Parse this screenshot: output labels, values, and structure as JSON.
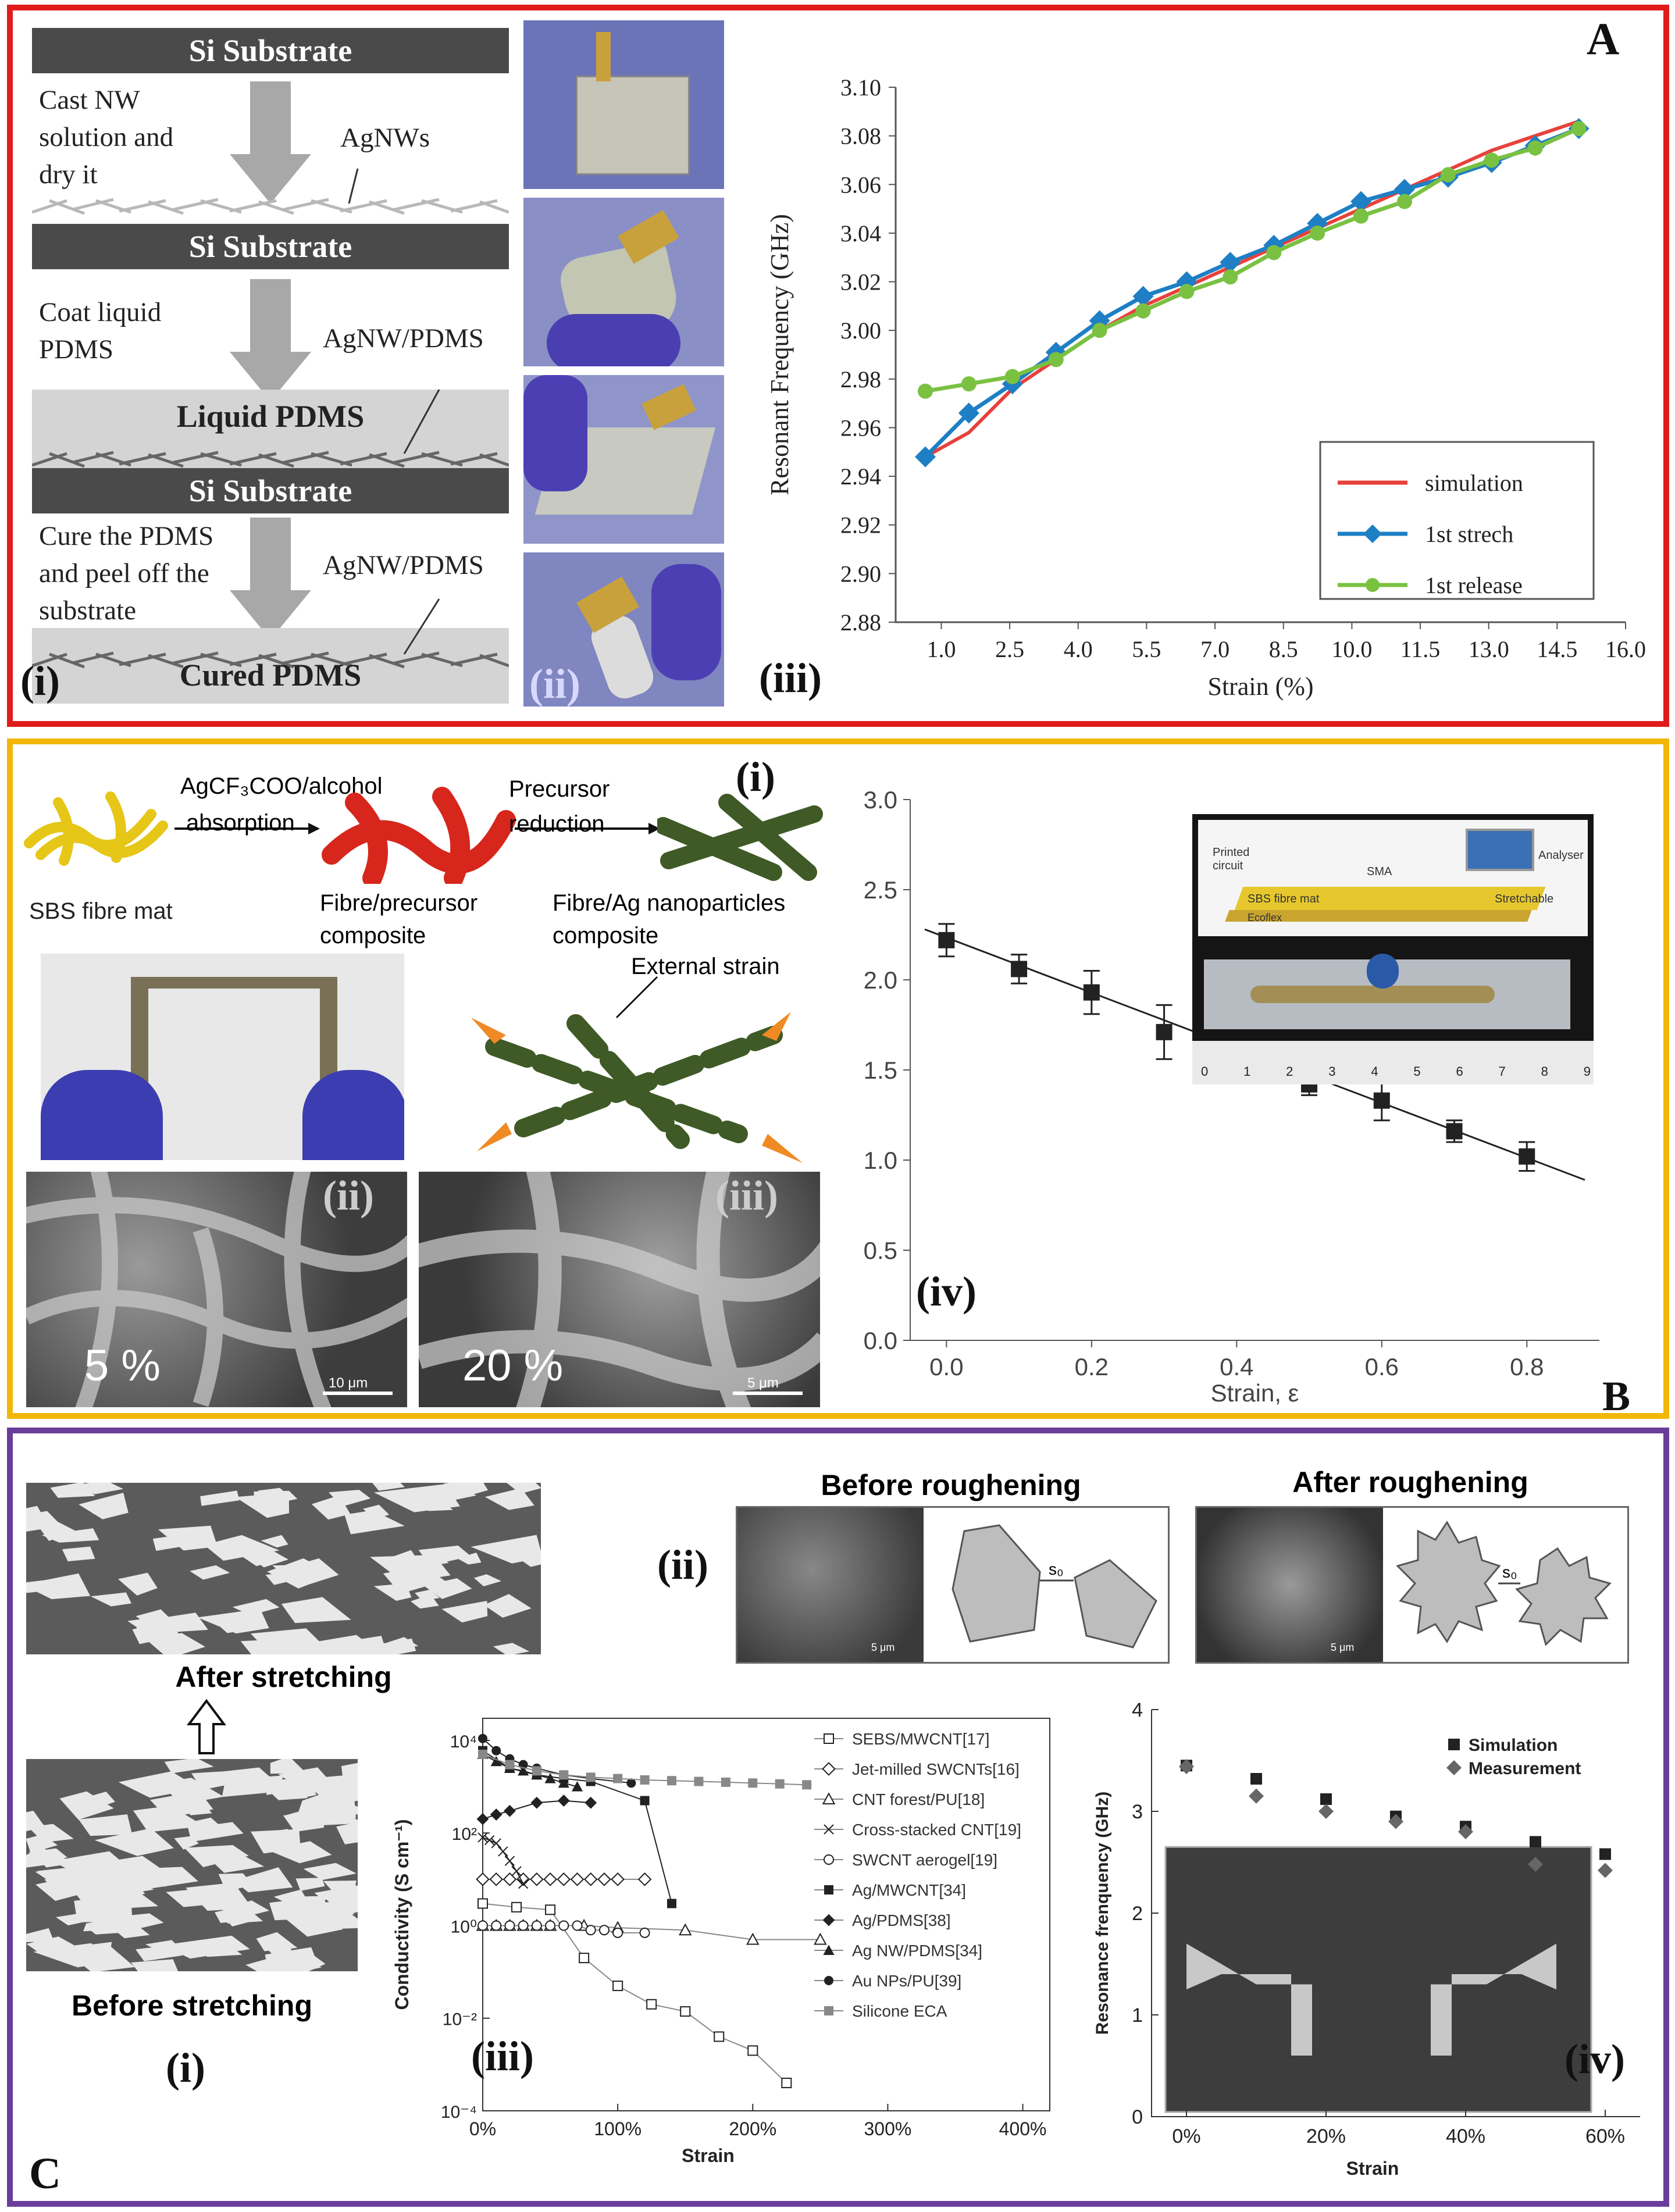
{
  "colors": {
    "panelA_border": "#e01b1b",
    "panelB_border": "#f2b705",
    "panelC_border": "#6a3d9a",
    "sim": "#e8413b",
    "stretch": "#1e7fc4",
    "release": "#7ac142"
  },
  "panelA": {
    "letter": "A",
    "label_i": "(i)",
    "label_ii": "(ii)",
    "label_iii": "(iii)",
    "bars": [
      "Si Substrate",
      "Si Substrate",
      "Si Substrate"
    ],
    "liquid_pdms": "Liquid PDMS",
    "cured_pdms": "Cured PDMS",
    "step1": [
      "Cast NW",
      "solution and",
      "dry it"
    ],
    "step2": [
      "Coat liquid",
      "PDMS"
    ],
    "step3": [
      "Cure the PDMS",
      "and peel off the",
      "substrate"
    ],
    "ann1": "AgNWs",
    "ann2": "AgNW/PDMS",
    "ann3": "AgNW/PDMS"
  },
  "panelB": {
    "letter": "B",
    "label_i": "(i)",
    "label_ii": "(ii)",
    "label_iii": "(iii)",
    "label_iv": "(iv)",
    "arrow1_top": "AgCF₃COO/alcohol",
    "arrow1_bot": "absorption",
    "arrow2_top": "Precursor",
    "arrow2_bot": "reduction",
    "mat": "SBS fibre mat",
    "comp1": [
      "Fibre/precursor",
      "composite"
    ],
    "comp2": [
      "Fibre/Ag nanoparticles",
      "composite"
    ],
    "external": "External strain",
    "sem1_pct": "5 %",
    "sem2_pct": "20 %",
    "sem1_scale": "10 μm",
    "sem2_scale": "5 μm",
    "inset": {
      "printed": "Printed",
      "circuit": "circuit",
      "sma": "SMA",
      "analyser": "Analyser",
      "mat": "SBS fibre mat",
      "stretch": "Stretchable",
      "ecoflex": "Ecoflex",
      "ruler": [
        "0",
        "1",
        "2",
        "3",
        "4",
        "5",
        "6",
        "7",
        "8",
        "9"
      ]
    }
  },
  "panelC": {
    "letter": "C",
    "label_i": "(i)",
    "label_ii": "(ii)",
    "label_iii": "(iii)",
    "label_iv": "(iv)",
    "after_stretch": "After stretching",
    "before_stretch": "Before stretching",
    "before_rough": "Before roughening",
    "after_rough": "After roughening",
    "s0": "s₀",
    "scale": "5 μm"
  },
  "chart_data": [
    {
      "id": "A-iii",
      "type": "line",
      "xlabel": "Strain (%)",
      "ylabel": "Resonant Frequency (GHz)",
      "xlim": [
        0,
        16
      ],
      "ylim": [
        2.88,
        3.1
      ],
      "xticks": [
        "1.0",
        "2.5",
        "4.0",
        "5.5",
        "7.0",
        "8.5",
        "10.0",
        "11.5",
        "13.0",
        "14.5",
        "16.0"
      ],
      "yticks": [
        "2.88",
        "2.90",
        "2.92",
        "2.94",
        "2.96",
        "2.98",
        "3.00",
        "3.02",
        "3.04",
        "3.06",
        "3.08",
        "3.10"
      ],
      "legend_position": "bottom-right",
      "series": [
        {
          "name": "simulation",
          "x": [
            0,
            1,
            2,
            3,
            4,
            5,
            6,
            7,
            8,
            9,
            10,
            11,
            12,
            13,
            14,
            15
          ],
          "y": [
            2.948,
            2.958,
            2.976,
            2.988,
            3.0,
            3.01,
            3.018,
            3.026,
            3.034,
            3.042,
            3.05,
            3.058,
            3.066,
            3.074,
            3.08,
            3.086
          ]
        },
        {
          "name": "1st strech",
          "x": [
            0,
            1,
            2,
            3,
            4,
            5,
            6,
            7,
            8,
            9,
            10,
            11,
            12,
            13,
            14,
            15
          ],
          "y": [
            2.948,
            2.966,
            2.978,
            2.991,
            3.004,
            3.014,
            3.02,
            3.028,
            3.035,
            3.044,
            3.053,
            3.058,
            3.063,
            3.069,
            3.076,
            3.083
          ]
        },
        {
          "name": "1st release",
          "x": [
            0,
            1,
            2,
            3,
            4,
            5,
            6,
            7,
            8,
            9,
            10,
            11,
            12,
            13,
            14,
            15
          ],
          "y": [
            2.975,
            2.978,
            2.981,
            2.988,
            3.0,
            3.008,
            3.016,
            3.022,
            3.032,
            3.04,
            3.047,
            3.053,
            3.064,
            3.07,
            3.075,
            3.083
          ]
        }
      ]
    },
    {
      "id": "B-iv",
      "type": "scatter",
      "xlabel": "Strain, ε",
      "ylabel": "",
      "xlim": [
        -0.05,
        0.9
      ],
      "ylim": [
        0,
        3.0
      ],
      "xticks": [
        "0.0",
        "0.2",
        "0.4",
        "0.6",
        "0.8"
      ],
      "yticks": [
        "0.0",
        "0.5",
        "1.0",
        "1.5",
        "2.0",
        "2.5",
        "3.0"
      ],
      "x": [
        0,
        0.1,
        0.2,
        0.3,
        0.5,
        0.6,
        0.7,
        0.8
      ],
      "y": [
        2.22,
        2.06,
        1.93,
        1.71,
        1.42,
        1.33,
        1.16,
        1.02
      ],
      "err": [
        0.09,
        0.08,
        0.12,
        0.15,
        0.06,
        0.11,
        0.06,
        0.08
      ],
      "fit": {
        "x": [
          -0.03,
          0.88
        ],
        "y": [
          2.28,
          0.89
        ]
      }
    },
    {
      "id": "C-iii",
      "type": "line",
      "xlabel": "Strain",
      "ylabel": "Conductivity (S cm⁻¹)",
      "yscale": "log",
      "xlim": [
        0,
        4.2
      ],
      "ylim": [
        0.0001,
        30000
      ],
      "xticks": [
        "0%",
        "100%",
        "200%",
        "300%",
        "400%"
      ],
      "yticks": [
        "10⁻⁴",
        "10⁻²",
        "10⁰",
        "10²",
        "10⁴"
      ],
      "legend_position": "right",
      "series": [
        {
          "name": "SEBS/MWCNT[17]",
          "marker": "open-square",
          "x": [
            0,
            0.25,
            0.5,
            0.75,
            1.0,
            1.25,
            1.5,
            1.75,
            2.0,
            2.25
          ],
          "y": [
            3,
            2.5,
            2.2,
            0.2,
            0.05,
            0.02,
            0.014,
            0.004,
            0.002,
            0.0004
          ]
        },
        {
          "name": "Jet-milled SWCNTs[16]",
          "marker": "open-diamond",
          "x": [
            0,
            0.1,
            0.2,
            0.3,
            0.4,
            0.5,
            0.6,
            0.7,
            0.8,
            0.9,
            1.0,
            1.2
          ],
          "y": [
            10,
            10,
            10,
            10,
            10,
            10,
            10,
            10,
            10,
            10,
            10,
            10
          ]
        },
        {
          "name": "CNT forest/PU[18]",
          "marker": "open-triangle",
          "x": [
            0,
            0.1,
            0.2,
            0.3,
            0.4,
            0.5,
            0.75,
            1.0,
            1.5,
            2.0,
            2.5
          ],
          "y": [
            1,
            1,
            1,
            1,
            1,
            1,
            1,
            0.9,
            0.8,
            0.5,
            0.5
          ]
        },
        {
          "name": "Cross-stacked CNT[19]",
          "marker": "x",
          "x": [
            0,
            0.05,
            0.1,
            0.15,
            0.2,
            0.25,
            0.3
          ],
          "y": [
            80,
            70,
            60,
            40,
            25,
            15,
            8
          ]
        },
        {
          "name": "SWCNT aerogel[19]",
          "marker": "open-circle",
          "x": [
            0,
            0.1,
            0.2,
            0.3,
            0.4,
            0.5,
            0.6,
            0.7,
            0.8,
            0.9,
            1.0,
            1.2
          ],
          "y": [
            1,
            1,
            1,
            1,
            1,
            1,
            1,
            1,
            0.8,
            0.8,
            0.7,
            0.7
          ]
        },
        {
          "name": "Ag/MWCNT[34]",
          "marker": "square",
          "x": [
            0,
            0.2,
            0.4,
            0.6,
            0.8,
            1.2,
            1.4
          ],
          "y": [
            6000,
            2500,
            1800,
            1500,
            1300,
            500,
            3
          ]
        },
        {
          "name": "Ag/PDMS[38]",
          "marker": "diamond",
          "x": [
            0,
            0.1,
            0.2,
            0.4,
            0.6,
            0.8
          ],
          "y": [
            200,
            250,
            300,
            450,
            500,
            450
          ]
        },
        {
          "name": "Ag NW/PDMS[34]",
          "marker": "triangle",
          "x": [
            0,
            0.1,
            0.2,
            0.3,
            0.4,
            0.5,
            0.6,
            0.7
          ],
          "y": [
            5000,
            3500,
            2500,
            2200,
            1800,
            1500,
            1200,
            1000
          ]
        },
        {
          "name": "Au NPs/PU[39]",
          "marker": "circle",
          "x": [
            0,
            0.1,
            0.2,
            0.3,
            0.4,
            0.6,
            0.8,
            1.1
          ],
          "y": [
            11000,
            6000,
            4000,
            3000,
            2500,
            1800,
            1500,
            1200
          ]
        },
        {
          "name": "Silicone ECA",
          "marker": "gray-square",
          "x": [
            0,
            0.2,
            0.4,
            0.6,
            0.8,
            1.0,
            1.2,
            1.4,
            1.6,
            1.8,
            2.0,
            2.2,
            2.4
          ],
          "y": [
            5000,
            3000,
            2200,
            1800,
            1600,
            1500,
            1400,
            1350,
            1300,
            1250,
            1200,
            1150,
            1100
          ]
        }
      ]
    },
    {
      "id": "C-iv",
      "type": "scatter",
      "xlabel": "Strain",
      "ylabel": "Resonance frenquency (GHz)",
      "xlim": [
        -0.05,
        0.65
      ],
      "ylim": [
        0,
        4
      ],
      "xticks": [
        "0%",
        "20%",
        "40%",
        "60%"
      ],
      "yticks": [
        "0",
        "1",
        "2",
        "3",
        "4"
      ],
      "legend_position": "top-right",
      "series": [
        {
          "name": "Simulation",
          "marker": "square",
          "x": [
            0,
            0.1,
            0.2,
            0.3,
            0.4,
            0.5,
            0.6
          ],
          "y": [
            3.45,
            3.32,
            3.12,
            2.95,
            2.85,
            2.7,
            2.58
          ]
        },
        {
          "name": "Measurement",
          "marker": "diamond",
          "x": [
            0,
            0.1,
            0.2,
            0.3,
            0.4,
            0.5,
            0.6
          ],
          "y": [
            3.44,
            3.15,
            3.0,
            2.9,
            2.8,
            2.48,
            2.42
          ]
        }
      ]
    }
  ]
}
